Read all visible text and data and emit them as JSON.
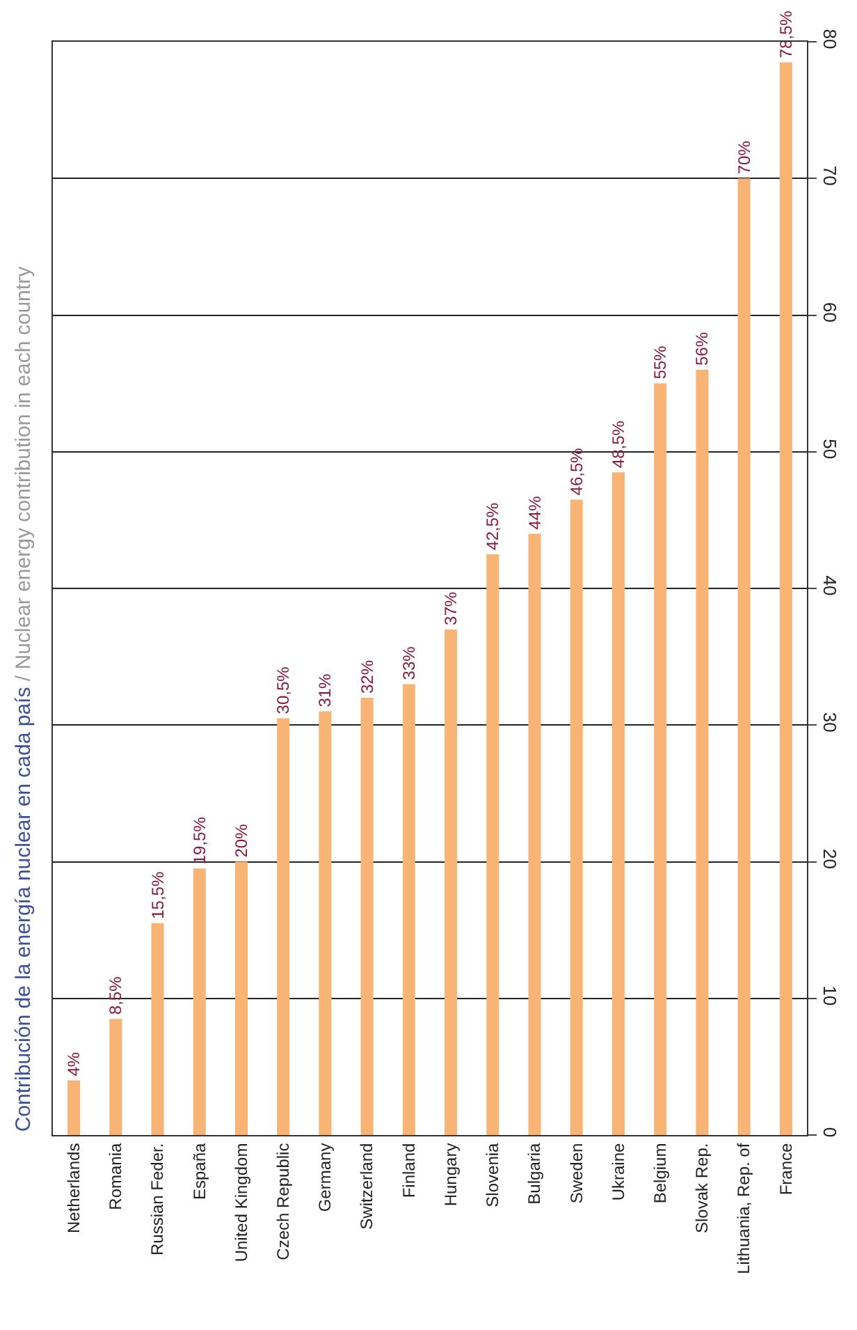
{
  "chart_data": {
    "type": "bar",
    "title": "Contribución de la energía nuclear en cada país",
    "subtitle": "/ Nuclear energy contribution in each country",
    "categories": [
      "Netherlands",
      "Romania",
      "Russian Feder.",
      "España",
      "United Kingdom",
      "Czech Republic",
      "Germany",
      "Switzerland",
      "Finland",
      "Hungary",
      "Slovenia",
      "Bulgaria",
      "Sweden",
      "Ukraine",
      "Belgium",
      "Slovak Rep.",
      "Lithuania, Rep. of",
      "France"
    ],
    "values": [
      4,
      8.5,
      15.5,
      19.5,
      20,
      30.5,
      31,
      32,
      33,
      37,
      42.5,
      44,
      46.5,
      48.5,
      55,
      56,
      70,
      78.5
    ],
    "value_labels": [
      "4%",
      "8,5%",
      "15,5%",
      "19,5%",
      "20%",
      "30,5%",
      "31%",
      "32%",
      "33%",
      "37%",
      "42,5%",
      "44%",
      "46,5%",
      "48,5%",
      "55%",
      "56%",
      "70%",
      "78,5%"
    ],
    "color": "#f7b474",
    "ylim": [
      0,
      80
    ],
    "yticks": [
      0,
      10,
      20,
      30,
      40,
      50,
      60,
      70,
      80
    ],
    "grid": "y"
  }
}
